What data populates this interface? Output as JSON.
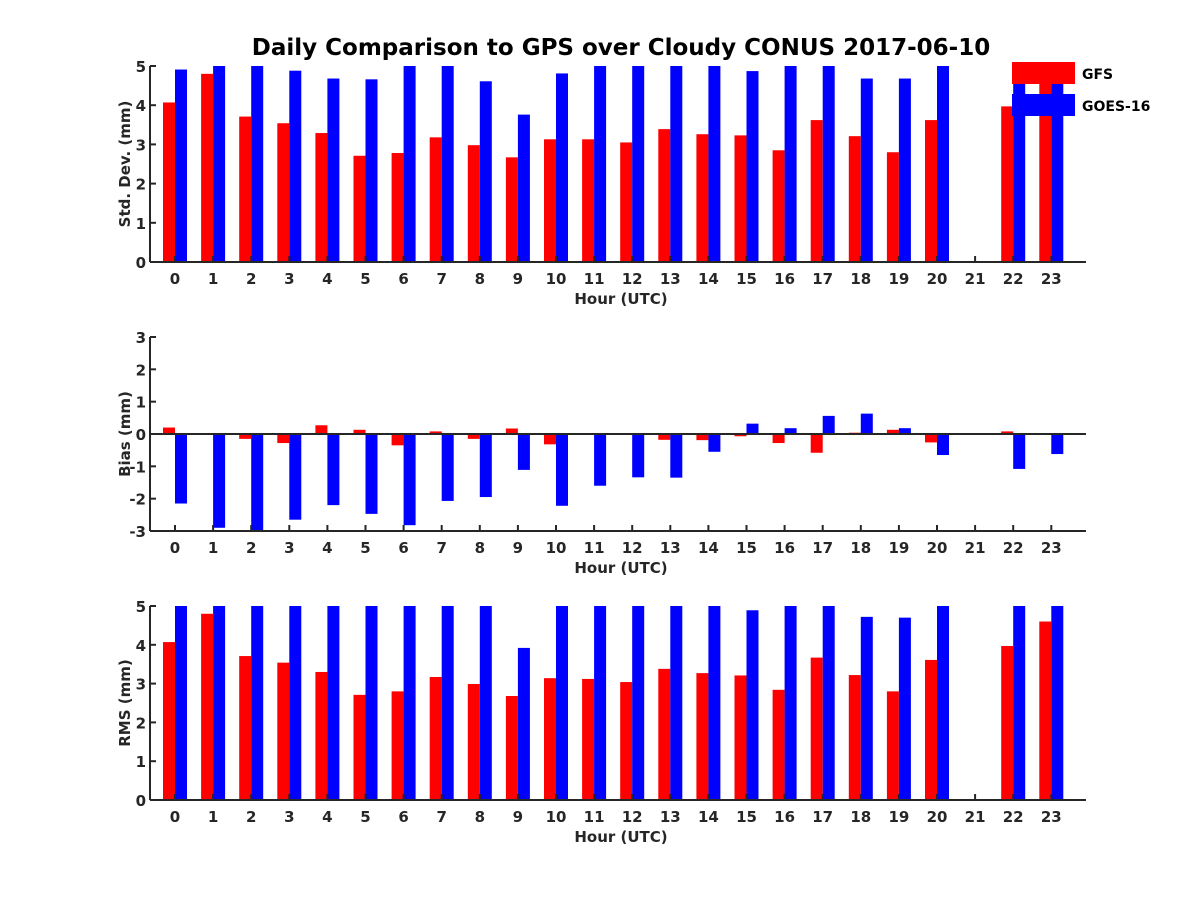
{
  "title": "Daily Comparison to GPS over Cloudy CONUS 2017-06-10",
  "colors": {
    "GFS": "#ff0000",
    "GOES-16": "#0000ff"
  },
  "legend": {
    "placement": "top-right",
    "entries": [
      "GFS",
      "GOES-16"
    ]
  },
  "chart_data": [
    {
      "type": "bar",
      "ylabel": "Std. Dev. (mm)",
      "xlabel": "Hour (UTC)",
      "ylim": [
        0,
        5
      ],
      "yticks": [
        "0",
        "1",
        "2",
        "3",
        "4",
        "5"
      ],
      "categories": [
        "0",
        "1",
        "2",
        "3",
        "4",
        "5",
        "6",
        "7",
        "8",
        "9",
        "10",
        "11",
        "12",
        "13",
        "14",
        "15",
        "16",
        "17",
        "18",
        "19",
        "20",
        "21",
        "22",
        "23"
      ],
      "series": [
        {
          "name": "GFS",
          "values": [
            4.07,
            4.8,
            3.71,
            3.54,
            3.29,
            2.71,
            2.78,
            3.18,
            2.98,
            2.67,
            3.13,
            3.13,
            3.05,
            3.39,
            3.26,
            3.23,
            2.85,
            3.62,
            3.21,
            2.8,
            3.62,
            null,
            3.97,
            4.6
          ]
        },
        {
          "name": "GOES-16",
          "values": [
            4.91,
            5.0,
            5.0,
            4.88,
            4.68,
            4.66,
            5.0,
            5.0,
            4.61,
            3.76,
            4.81,
            5.0,
            5.0,
            5.0,
            5.0,
            4.87,
            5.0,
            5.0,
            4.68,
            4.68,
            5.0,
            null,
            5.0,
            5.0
          ]
        }
      ]
    },
    {
      "type": "bar",
      "ylabel": "Bias (mm)",
      "xlabel": "Hour (UTC)",
      "ylim": [
        -3,
        3
      ],
      "yticks": [
        "-3",
        "-2",
        "-1",
        "0",
        "1",
        "2",
        "3"
      ],
      "zero_line": true,
      "categories": [
        "0",
        "1",
        "2",
        "3",
        "4",
        "5",
        "6",
        "7",
        "8",
        "9",
        "10",
        "11",
        "12",
        "13",
        "14",
        "15",
        "16",
        "17",
        "18",
        "19",
        "20",
        "21",
        "22",
        "23"
      ],
      "series": [
        {
          "name": "GFS",
          "values": [
            0.2,
            -0.02,
            -0.15,
            -0.28,
            0.27,
            0.13,
            -0.35,
            0.08,
            -0.15,
            0.17,
            -0.32,
            0.02,
            -0.02,
            -0.18,
            -0.19,
            -0.07,
            -0.28,
            -0.58,
            0.04,
            0.13,
            -0.26,
            null,
            0.08,
            0.02
          ]
        },
        {
          "name": "GOES-16",
          "values": [
            -2.15,
            -2.9,
            -3.0,
            -2.65,
            -2.2,
            -2.47,
            -2.82,
            -2.07,
            -1.95,
            -1.11,
            -2.22,
            -1.6,
            -1.34,
            -1.35,
            -0.55,
            0.32,
            0.18,
            0.56,
            0.63,
            0.18,
            -0.65,
            null,
            -1.08,
            -0.62
          ]
        }
      ]
    },
    {
      "type": "bar",
      "ylabel": "RMS (mm)",
      "xlabel": "Hour (UTC)",
      "ylim": [
        0,
        5
      ],
      "yticks": [
        "0",
        "1",
        "2",
        "3",
        "4",
        "5"
      ],
      "categories": [
        "0",
        "1",
        "2",
        "3",
        "4",
        "5",
        "6",
        "7",
        "8",
        "9",
        "10",
        "11",
        "12",
        "13",
        "14",
        "15",
        "16",
        "17",
        "18",
        "19",
        "20",
        "21",
        "22",
        "23"
      ],
      "series": [
        {
          "name": "GFS",
          "values": [
            4.07,
            4.8,
            3.71,
            3.54,
            3.3,
            2.71,
            2.8,
            3.17,
            2.99,
            2.68,
            3.14,
            3.12,
            3.04,
            3.38,
            3.27,
            3.21,
            2.84,
            3.67,
            3.22,
            2.8,
            3.61,
            null,
            3.97,
            4.6
          ]
        },
        {
          "name": "GOES-16",
          "values": [
            5.0,
            5.0,
            5.0,
            5.0,
            5.0,
            5.0,
            5.0,
            5.0,
            5.0,
            3.92,
            5.0,
            5.0,
            5.0,
            5.0,
            5.0,
            4.89,
            5.0,
            5.0,
            4.72,
            4.7,
            5.0,
            null,
            5.0,
            5.0
          ]
        }
      ]
    }
  ]
}
